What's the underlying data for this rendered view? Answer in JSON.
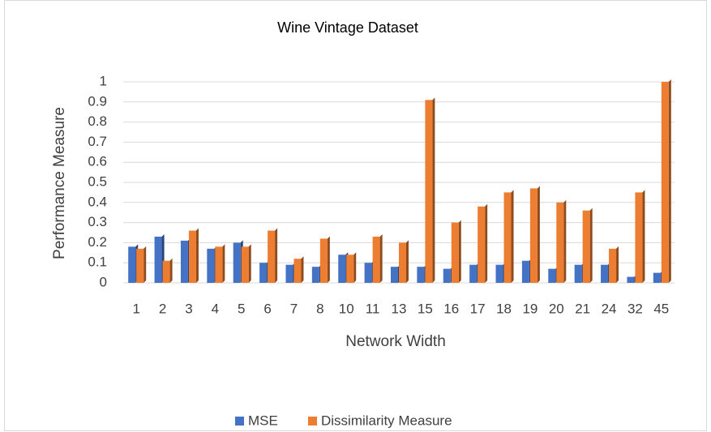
{
  "chart_data": {
    "type": "bar",
    "title": "Wine Vintage Dataset",
    "xlabel": "Network Width",
    "ylabel": "Performance Measure",
    "categories": [
      "1",
      "2",
      "3",
      "4",
      "5",
      "6",
      "7",
      "8",
      "10",
      "11",
      "13",
      "15",
      "16",
      "17",
      "18",
      "19",
      "20",
      "21",
      "24",
      "32",
      "45"
    ],
    "series": [
      {
        "name": "MSE",
        "color": "#4472c4",
        "values": [
          0.18,
          0.23,
          0.21,
          0.17,
          0.2,
          0.1,
          0.09,
          0.08,
          0.14,
          0.1,
          0.08,
          0.08,
          0.07,
          0.09,
          0.09,
          0.11,
          0.07,
          0.09,
          0.09,
          0.03,
          0.05
        ]
      },
      {
        "name": "Dissimilarity Measure",
        "color": "#ed7d31",
        "values": [
          0.17,
          0.11,
          0.26,
          0.18,
          0.18,
          0.26,
          0.12,
          0.22,
          0.14,
          0.23,
          0.2,
          0.91,
          0.3,
          0.38,
          0.45,
          0.47,
          0.4,
          0.36,
          0.17,
          0.45,
          1.0
        ]
      }
    ],
    "ylim": [
      0,
      1
    ],
    "yticks": [
      0,
      0.1,
      0.2,
      0.3,
      0.4,
      0.5,
      0.6,
      0.7,
      0.8,
      0.9,
      1
    ],
    "grid": true,
    "legend": "bottom"
  }
}
